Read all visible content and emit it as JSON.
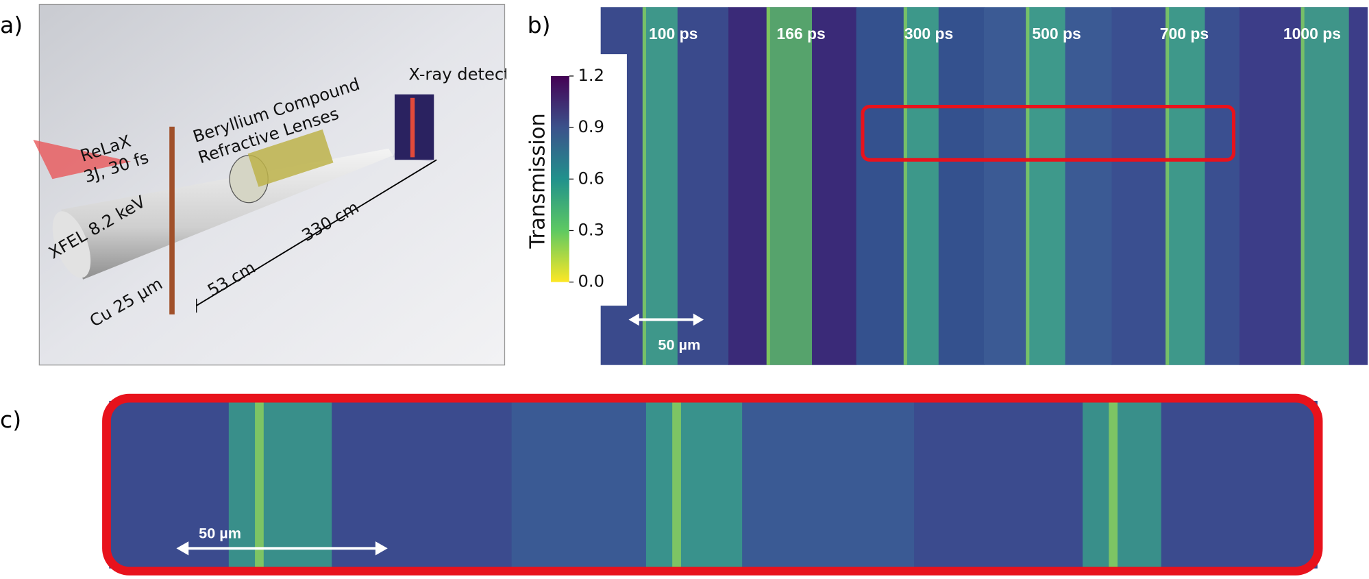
{
  "panel_labels": [
    "a)",
    "b)",
    "c)"
  ],
  "panel_a": {
    "detector": "X-ray detector",
    "lenses_line1": "Beryllium Compound",
    "lenses_line2": "Refractive Lenses",
    "laser_line1": "ReLaX",
    "laser_line2": "3J, 30 fs",
    "xfel": "XFEL 8.2 keV",
    "target": "Cu 25 µm",
    "dist1": "53 cm",
    "dist2": "330 cm"
  },
  "panel_b": {
    "times": [
      "100 ps",
      "166 ps",
      "300 ps",
      "500 ps",
      "700 ps",
      "1000 ps"
    ],
    "colorbar_label": "Transmission",
    "colorbar_ticks": [
      "1.2",
      "0.9",
      "0.6",
      "0.3",
      "0.0"
    ],
    "scale_bar": "50 µm"
  },
  "panel_c": {
    "scale_bar": "50 µm"
  }
}
